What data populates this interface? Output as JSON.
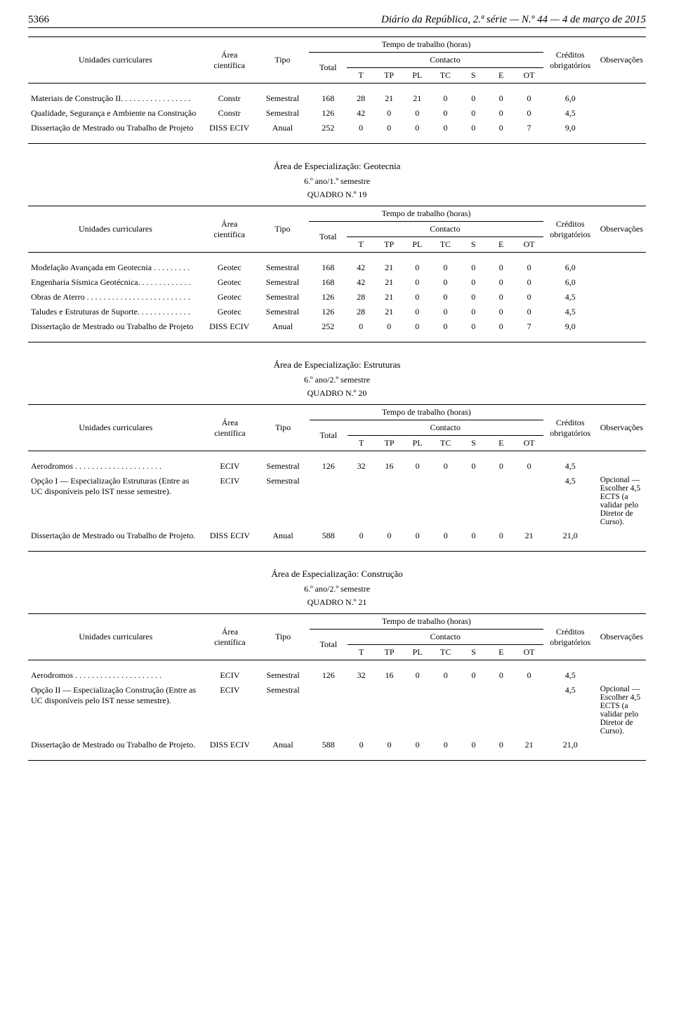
{
  "header": {
    "page_no": "5366",
    "journal": "Diário da República, 2.ª série — N.º 44 — 4 de março de 2015"
  },
  "common_headers": {
    "uc": "Unidades curriculares",
    "area": "Área científica",
    "tipo": "Tipo",
    "tempo": "Tempo de trabalho (horas)",
    "total": "Total",
    "contacto": "Contacto",
    "cred": "Créditos obrigatórios",
    "obs": "Observações",
    "cT": "T",
    "cTP": "TP",
    "cPL": "PL",
    "cTC": "TC",
    "cS": "S",
    "cE": "E",
    "cOT": "OT"
  },
  "table_top": {
    "rows": [
      {
        "uc": "Materiais de Construção II. . . . . . . . . . . . . . . . .",
        "area": "Constr",
        "tipo": "Semestral",
        "total": "168",
        "T": "28",
        "TP": "21",
        "PL": "21",
        "TC": "0",
        "S": "0",
        "E": "0",
        "OT": "0",
        "cred": "6,0",
        "obs": ""
      },
      {
        "uc": "Qualidade, Segurança e Ambiente na Construção",
        "area": "Constr",
        "tipo": "Semestral",
        "total": "126",
        "T": "42",
        "TP": "0",
        "PL": "0",
        "TC": "0",
        "S": "0",
        "E": "0",
        "OT": "0",
        "cred": "4,5",
        "obs": ""
      },
      {
        "uc": "Dissertação de Mestrado ou Trabalho de Projeto",
        "area": "DISS ECIV",
        "tipo": "Anual",
        "total": "252",
        "T": "0",
        "TP": "0",
        "PL": "0",
        "TC": "0",
        "S": "0",
        "E": "0",
        "OT": "7",
        "cred": "9,0",
        "obs": ""
      }
    ]
  },
  "section19": {
    "area_title": "Área de Especialização: Geotecnia",
    "sem": "6.º ano/1.º semestre",
    "quadro": "QUADRO N.º 19",
    "rows": [
      {
        "uc": "Modelação Avançada em Geotecnia . . . . . . . . .",
        "area": "Geotec",
        "tipo": "Semestral",
        "total": "168",
        "T": "42",
        "TP": "21",
        "PL": "0",
        "TC": "0",
        "S": "0",
        "E": "0",
        "OT": "0",
        "cred": "6,0",
        "obs": ""
      },
      {
        "uc": "Engenharia Sísmica Geotécnica. . . . . . . . . . . . .",
        "area": "Geotec",
        "tipo": "Semestral",
        "total": "168",
        "T": "42",
        "TP": "21",
        "PL": "0",
        "TC": "0",
        "S": "0",
        "E": "0",
        "OT": "0",
        "cred": "6,0",
        "obs": ""
      },
      {
        "uc": "Obras de Aterro . . . . . . . . . . . . . . . . . . . . . . . . .",
        "area": "Geotec",
        "tipo": "Semestral",
        "total": "126",
        "T": "28",
        "TP": "21",
        "PL": "0",
        "TC": "0",
        "S": "0",
        "E": "0",
        "OT": "0",
        "cred": "4,5",
        "obs": ""
      },
      {
        "uc": "Taludes e Estruturas de Suporte. . . . . . . . . . . . .",
        "area": "Geotec",
        "tipo": "Semestral",
        "total": "126",
        "T": "28",
        "TP": "21",
        "PL": "0",
        "TC": "0",
        "S": "0",
        "E": "0",
        "OT": "0",
        "cred": "4,5",
        "obs": ""
      },
      {
        "uc": "Dissertação de Mestrado ou Trabalho de Projeto",
        "area": "DISS ECIV",
        "tipo": "Anual",
        "total": "252",
        "T": "0",
        "TP": "0",
        "PL": "0",
        "TC": "0",
        "S": "0",
        "E": "0",
        "OT": "7",
        "cred": "9,0",
        "obs": ""
      }
    ]
  },
  "section20": {
    "area_title": "Área de Especialização: Estruturas",
    "sem": "6.º ano/2.º semestre",
    "quadro": "QUADRO N.º 20",
    "rows": [
      {
        "uc": "Aerodromos . . . . . . . . . . . . . . . . . . . . .",
        "area": "ECIV",
        "tipo": "Semestral",
        "total": "126",
        "T": "32",
        "TP": "16",
        "PL": "0",
        "TC": "0",
        "S": "0",
        "E": "0",
        "OT": "0",
        "cred": "4,5",
        "obs": ""
      },
      {
        "uc": "Opção I — Especialização Estruturas (Entre as UC disponíveis pelo IST nesse semestre).",
        "area": "ECIV",
        "tipo": "Semestral",
        "total": "",
        "T": "",
        "TP": "",
        "PL": "",
        "TC": "",
        "S": "",
        "E": "",
        "OT": "",
        "cred": "4,5",
        "obs": "Opcional — Escolher 4,5 ECTS (a validar pelo Diretor de Curso)."
      },
      {
        "uc": "Dissertação de Mestrado ou Trabalho de Projeto.",
        "area": "DISS ECIV",
        "tipo": "Anual",
        "total": "588",
        "T": "0",
        "TP": "0",
        "PL": "0",
        "TC": "0",
        "S": "0",
        "E": "0",
        "OT": "21",
        "cred": "21,0",
        "obs": ""
      }
    ]
  },
  "section21": {
    "area_title": "Área de Especialização: Construção",
    "sem": "6.º ano/2.º semestre",
    "quadro": "QUADRO N.º 21",
    "rows": [
      {
        "uc": "Aerodromos . . . . . . . . . . . . . . . . . . . . .",
        "area": "ECIV",
        "tipo": "Semestral",
        "total": "126",
        "T": "32",
        "TP": "16",
        "PL": "0",
        "TC": "0",
        "S": "0",
        "E": "0",
        "OT": "0",
        "cred": "4,5",
        "obs": ""
      },
      {
        "uc": "Opção II — Especialização Construção (Entre as UC disponíveis pelo IST nesse semestre).",
        "area": "ECIV",
        "tipo": "Semestral",
        "total": "",
        "T": "",
        "TP": "",
        "PL": "",
        "TC": "",
        "S": "",
        "E": "",
        "OT": "",
        "cred": "4,5",
        "obs": "Opcional — Escolher 4,5 ECTS (a validar pelo Diretor de Curso)."
      },
      {
        "uc": "Dissertação de Mestrado ou Trabalho de Projeto.",
        "area": "DISS ECIV",
        "tipo": "Anual",
        "total": "588",
        "T": "0",
        "TP": "0",
        "PL": "0",
        "TC": "0",
        "S": "0",
        "E": "0",
        "OT": "21",
        "cred": "21,0",
        "obs": ""
      }
    ]
  }
}
